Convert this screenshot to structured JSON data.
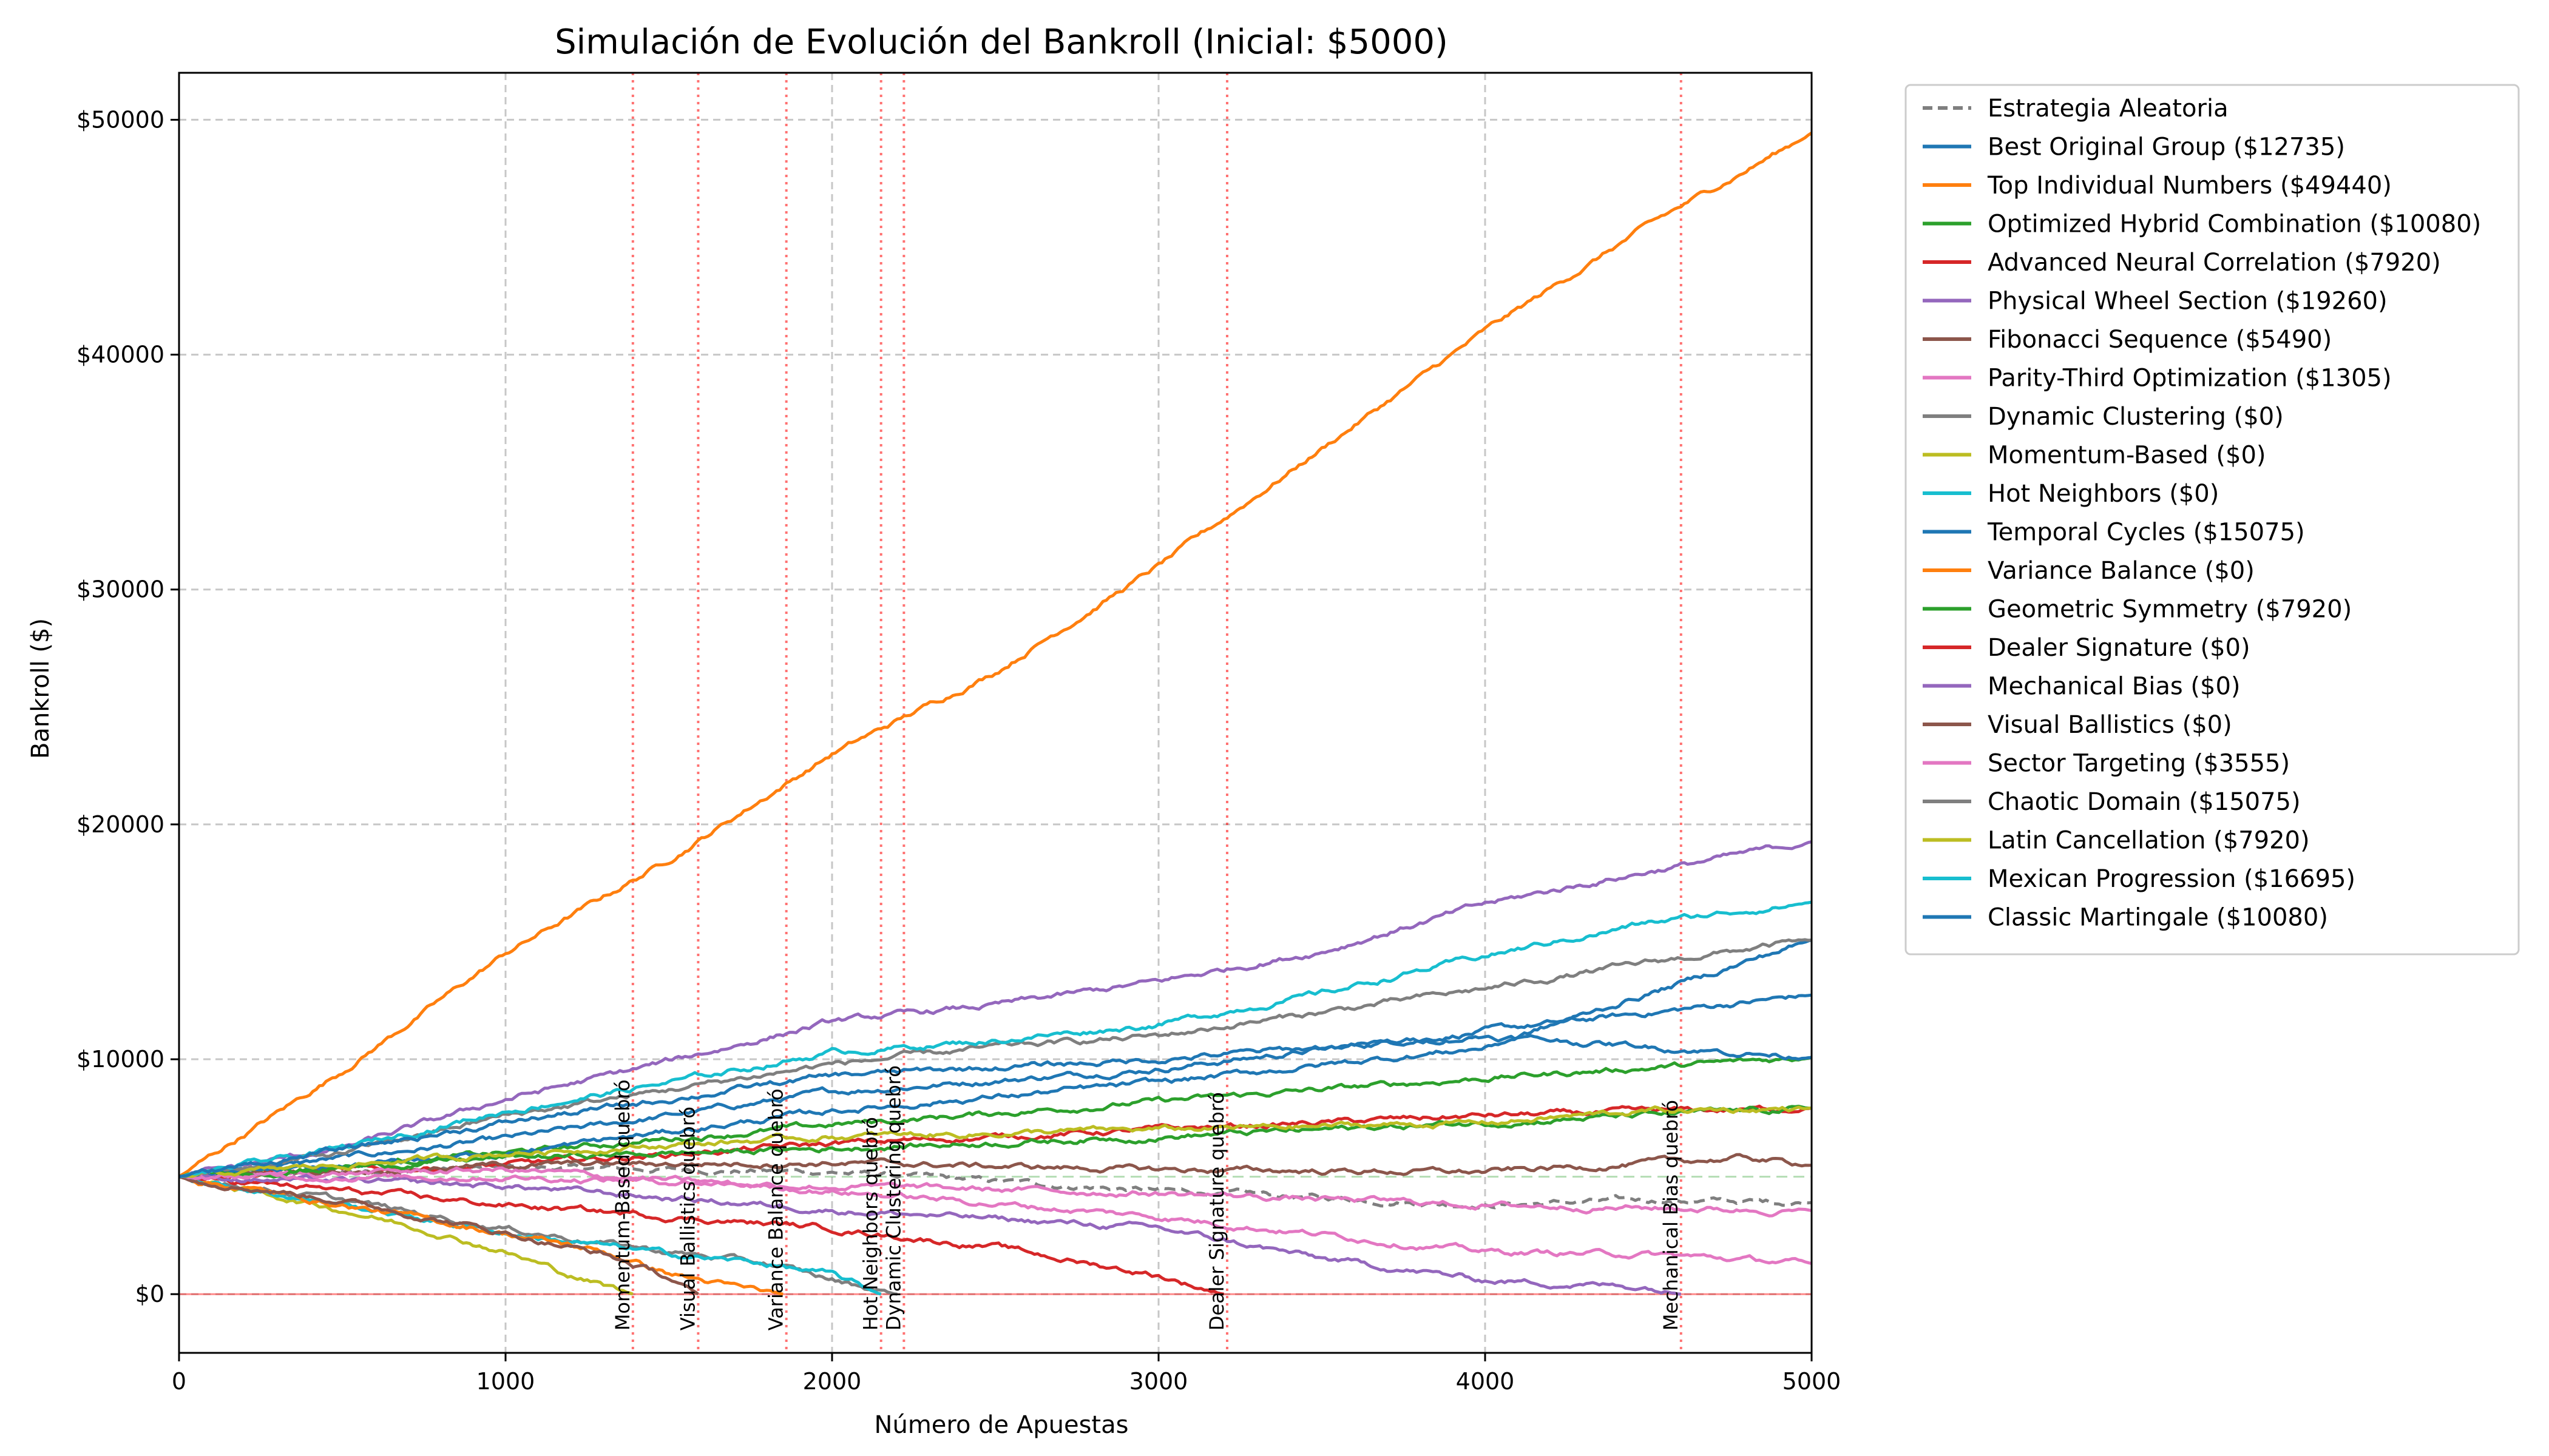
{
  "chart_data": {
    "type": "line",
    "title": "Simulación de Evolución del Bankroll (Inicial: $5000)",
    "xlabel": "Número de Apuestas",
    "ylabel": "Bankroll ($)",
    "xlim": [
      0,
      5000
    ],
    "ylim": [
      -2500,
      52000
    ],
    "x_ticks": [
      0,
      1000,
      2000,
      3000,
      4000,
      5000
    ],
    "x_tick_labels": [
      "0",
      "1000",
      "2000",
      "3000",
      "4000",
      "5000"
    ],
    "y_ticks": [
      0,
      10000,
      20000,
      30000,
      40000,
      50000
    ],
    "y_tick_labels": [
      "$0",
      "$10000",
      "$20000",
      "$30000",
      "$40000",
      "$50000"
    ],
    "grid": true,
    "legend_position": "outside-right",
    "initial_bankroll": 5000,
    "series": [
      {
        "name": "Estrategia Aleatoria",
        "color": "#7f7f7f",
        "dashed": true,
        "x": [
          0,
          1000,
          2000,
          3000,
          4000,
          4500,
          5000
        ],
        "y": [
          5000,
          5400,
          5200,
          4400,
          3800,
          4000,
          3900
        ]
      },
      {
        "name": "Best Original Group ($12735)",
        "color": "#1f77b4",
        "x": [
          0,
          1000,
          2000,
          3000,
          4000,
          5000
        ],
        "y": [
          5000,
          6600,
          8600,
          9600,
          11200,
          12735
        ]
      },
      {
        "name": "Top Individual Numbers ($49440)",
        "color": "#ff7f0e",
        "x": [
          0,
          500,
          1000,
          1500,
          2000,
          2500,
          3000,
          3500,
          4000,
          4500,
          5000
        ],
        "y": [
          5000,
          9500,
          14500,
          18500,
          23000,
          26500,
          31000,
          36000,
          41000,
          45500,
          49440
        ]
      },
      {
        "name": "Optimized Hybrid Combination ($10080)",
        "color": "#2ca02c",
        "x": [
          0,
          1000,
          2000,
          3000,
          4000,
          5000
        ],
        "y": [
          5000,
          6000,
          7200,
          8200,
          9200,
          10080
        ]
      },
      {
        "name": "Advanced Neural Correlation ($7920)",
        "color": "#d62728",
        "x": [
          0,
          1000,
          2000,
          3000,
          4000,
          5000
        ],
        "y": [
          5000,
          5500,
          6400,
          7000,
          7600,
          7920
        ]
      },
      {
        "name": "Physical Wheel Section ($19260)",
        "color": "#9467bd",
        "x": [
          0,
          500,
          1000,
          1500,
          2000,
          2500,
          3000,
          3500,
          4000,
          4500,
          5000
        ],
        "y": [
          5000,
          6200,
          8300,
          9900,
          11600,
          12300,
          13300,
          14600,
          16600,
          18000,
          19260
        ]
      },
      {
        "name": "Fibonacci Sequence ($5490)",
        "color": "#8c564b",
        "x": [
          0,
          1000,
          2000,
          3000,
          4000,
          4800,
          5000
        ],
        "y": [
          5000,
          5500,
          5600,
          5300,
          5200,
          5800,
          5490
        ]
      },
      {
        "name": "Parity-Third Optimization ($1305)",
        "color": "#e377c2",
        "x": [
          0,
          1000,
          2000,
          3000,
          4000,
          4500,
          5000
        ],
        "y": [
          5000,
          5300,
          4400,
          3300,
          1800,
          1700,
          1305
        ]
      },
      {
        "name": "Dynamic Clustering ($0)",
        "color": "#7f7f7f",
        "x": [
          0,
          500,
          1000,
          1500,
          1800,
          2000,
          2200
        ],
        "y": [
          5000,
          4000,
          2800,
          1800,
          1300,
          600,
          0
        ]
      },
      {
        "name": "Momentum-Based ($0)",
        "color": "#bcbd22",
        "x": [
          0,
          500,
          800,
          1000,
          1200,
          1390
        ],
        "y": [
          5000,
          3600,
          2600,
          1800,
          800,
          0
        ]
      },
      {
        "name": "Hot Neighbors ($0)",
        "color": "#17becf",
        "x": [
          0,
          500,
          1000,
          1500,
          1800,
          2000,
          2150
        ],
        "y": [
          5000,
          3800,
          2600,
          1700,
          1300,
          800,
          0
        ]
      },
      {
        "name": "Temporal Cycles ($15075)",
        "color": "#1f77b4",
        "x": [
          0,
          1000,
          2000,
          3000,
          4000,
          5000
        ],
        "y": [
          5000,
          6000,
          7800,
          9000,
          10500,
          15075
        ]
      },
      {
        "name": "Variance Balance ($0)",
        "color": "#ff7f0e",
        "x": [
          0,
          500,
          1000,
          1300,
          1500,
          1700,
          1850
        ],
        "y": [
          5000,
          3800,
          2600,
          1800,
          900,
          300,
          0
        ]
      },
      {
        "name": "Geometric Symmetry ($7920)",
        "color": "#2ca02c",
        "x": [
          0,
          1000,
          2000,
          3000,
          4000,
          5000
        ],
        "y": [
          5000,
          5800,
          6200,
          6700,
          7300,
          7920
        ]
      },
      {
        "name": "Dealer Signature ($0)",
        "color": "#d62728",
        "x": [
          0,
          500,
          1000,
          1500,
          2000,
          2500,
          3000,
          3200
        ],
        "y": [
          5000,
          4400,
          3800,
          3300,
          2800,
          2000,
          800,
          0
        ]
      },
      {
        "name": "Mechanical Bias ($0)",
        "color": "#9467bd",
        "x": [
          0,
          1000,
          2000,
          3000,
          3500,
          4000,
          4500,
          4600
        ],
        "y": [
          5000,
          4600,
          3600,
          2800,
          1500,
          600,
          300,
          0
        ]
      },
      {
        "name": "Visual Ballistics ($0)",
        "color": "#8c564b",
        "x": [
          0,
          500,
          1000,
          1300,
          1500,
          1590
        ],
        "y": [
          5000,
          4000,
          2600,
          1700,
          700,
          0
        ]
      },
      {
        "name": "Sector Targeting ($3555)",
        "color": "#e377c2",
        "x": [
          0,
          1000,
          2000,
          3000,
          4000,
          5000
        ],
        "y": [
          5000,
          5000,
          4600,
          4300,
          3800,
          3555
        ]
      },
      {
        "name": "Chaotic Domain ($15075)",
        "color": "#7f7f7f",
        "x": [
          0,
          500,
          1000,
          1500,
          2000,
          2500,
          3000,
          3500,
          4000,
          4500,
          5000
        ],
        "y": [
          5000,
          6000,
          7600,
          8700,
          9800,
          10500,
          11000,
          12000,
          13000,
          14100,
          15075
        ]
      },
      {
        "name": "Latin Cancellation ($7920)",
        "color": "#bcbd22",
        "x": [
          0,
          1000,
          2000,
          3000,
          4000,
          4500,
          5000
        ],
        "y": [
          5000,
          6000,
          6700,
          7000,
          7300,
          7800,
          7920
        ]
      },
      {
        "name": "Mexican Progression ($16695)",
        "color": "#17becf",
        "x": [
          0,
          500,
          1000,
          1500,
          2000,
          2500,
          3000,
          3500,
          4000,
          4500,
          5000
        ],
        "y": [
          5000,
          6200,
          7800,
          9000,
          10300,
          10800,
          11500,
          12800,
          14400,
          15800,
          16695
        ]
      },
      {
        "name": "Classic Martingale ($10080)",
        "color": "#1f77b4",
        "x": [
          0,
          1000,
          2000,
          3000,
          4000,
          5000
        ],
        "y": [
          5000,
          7300,
          9300,
          10000,
          11000,
          10080
        ]
      }
    ],
    "annotations": [
      {
        "x": 1390,
        "text": "Momentum-Based quebró"
      },
      {
        "x": 1590,
        "text": "Visual Ballistics quebró"
      },
      {
        "x": 1860,
        "text": "Variance Balance quebró"
      },
      {
        "x": 2150,
        "text": "Hot Neighbors quebró"
      },
      {
        "x": 2220,
        "text": "Dynamic Clustering quebró"
      },
      {
        "x": 3210,
        "text": "Dealer Signature quebró"
      },
      {
        "x": 4600,
        "text": "Mechanical Bias quebró"
      }
    ]
  }
}
